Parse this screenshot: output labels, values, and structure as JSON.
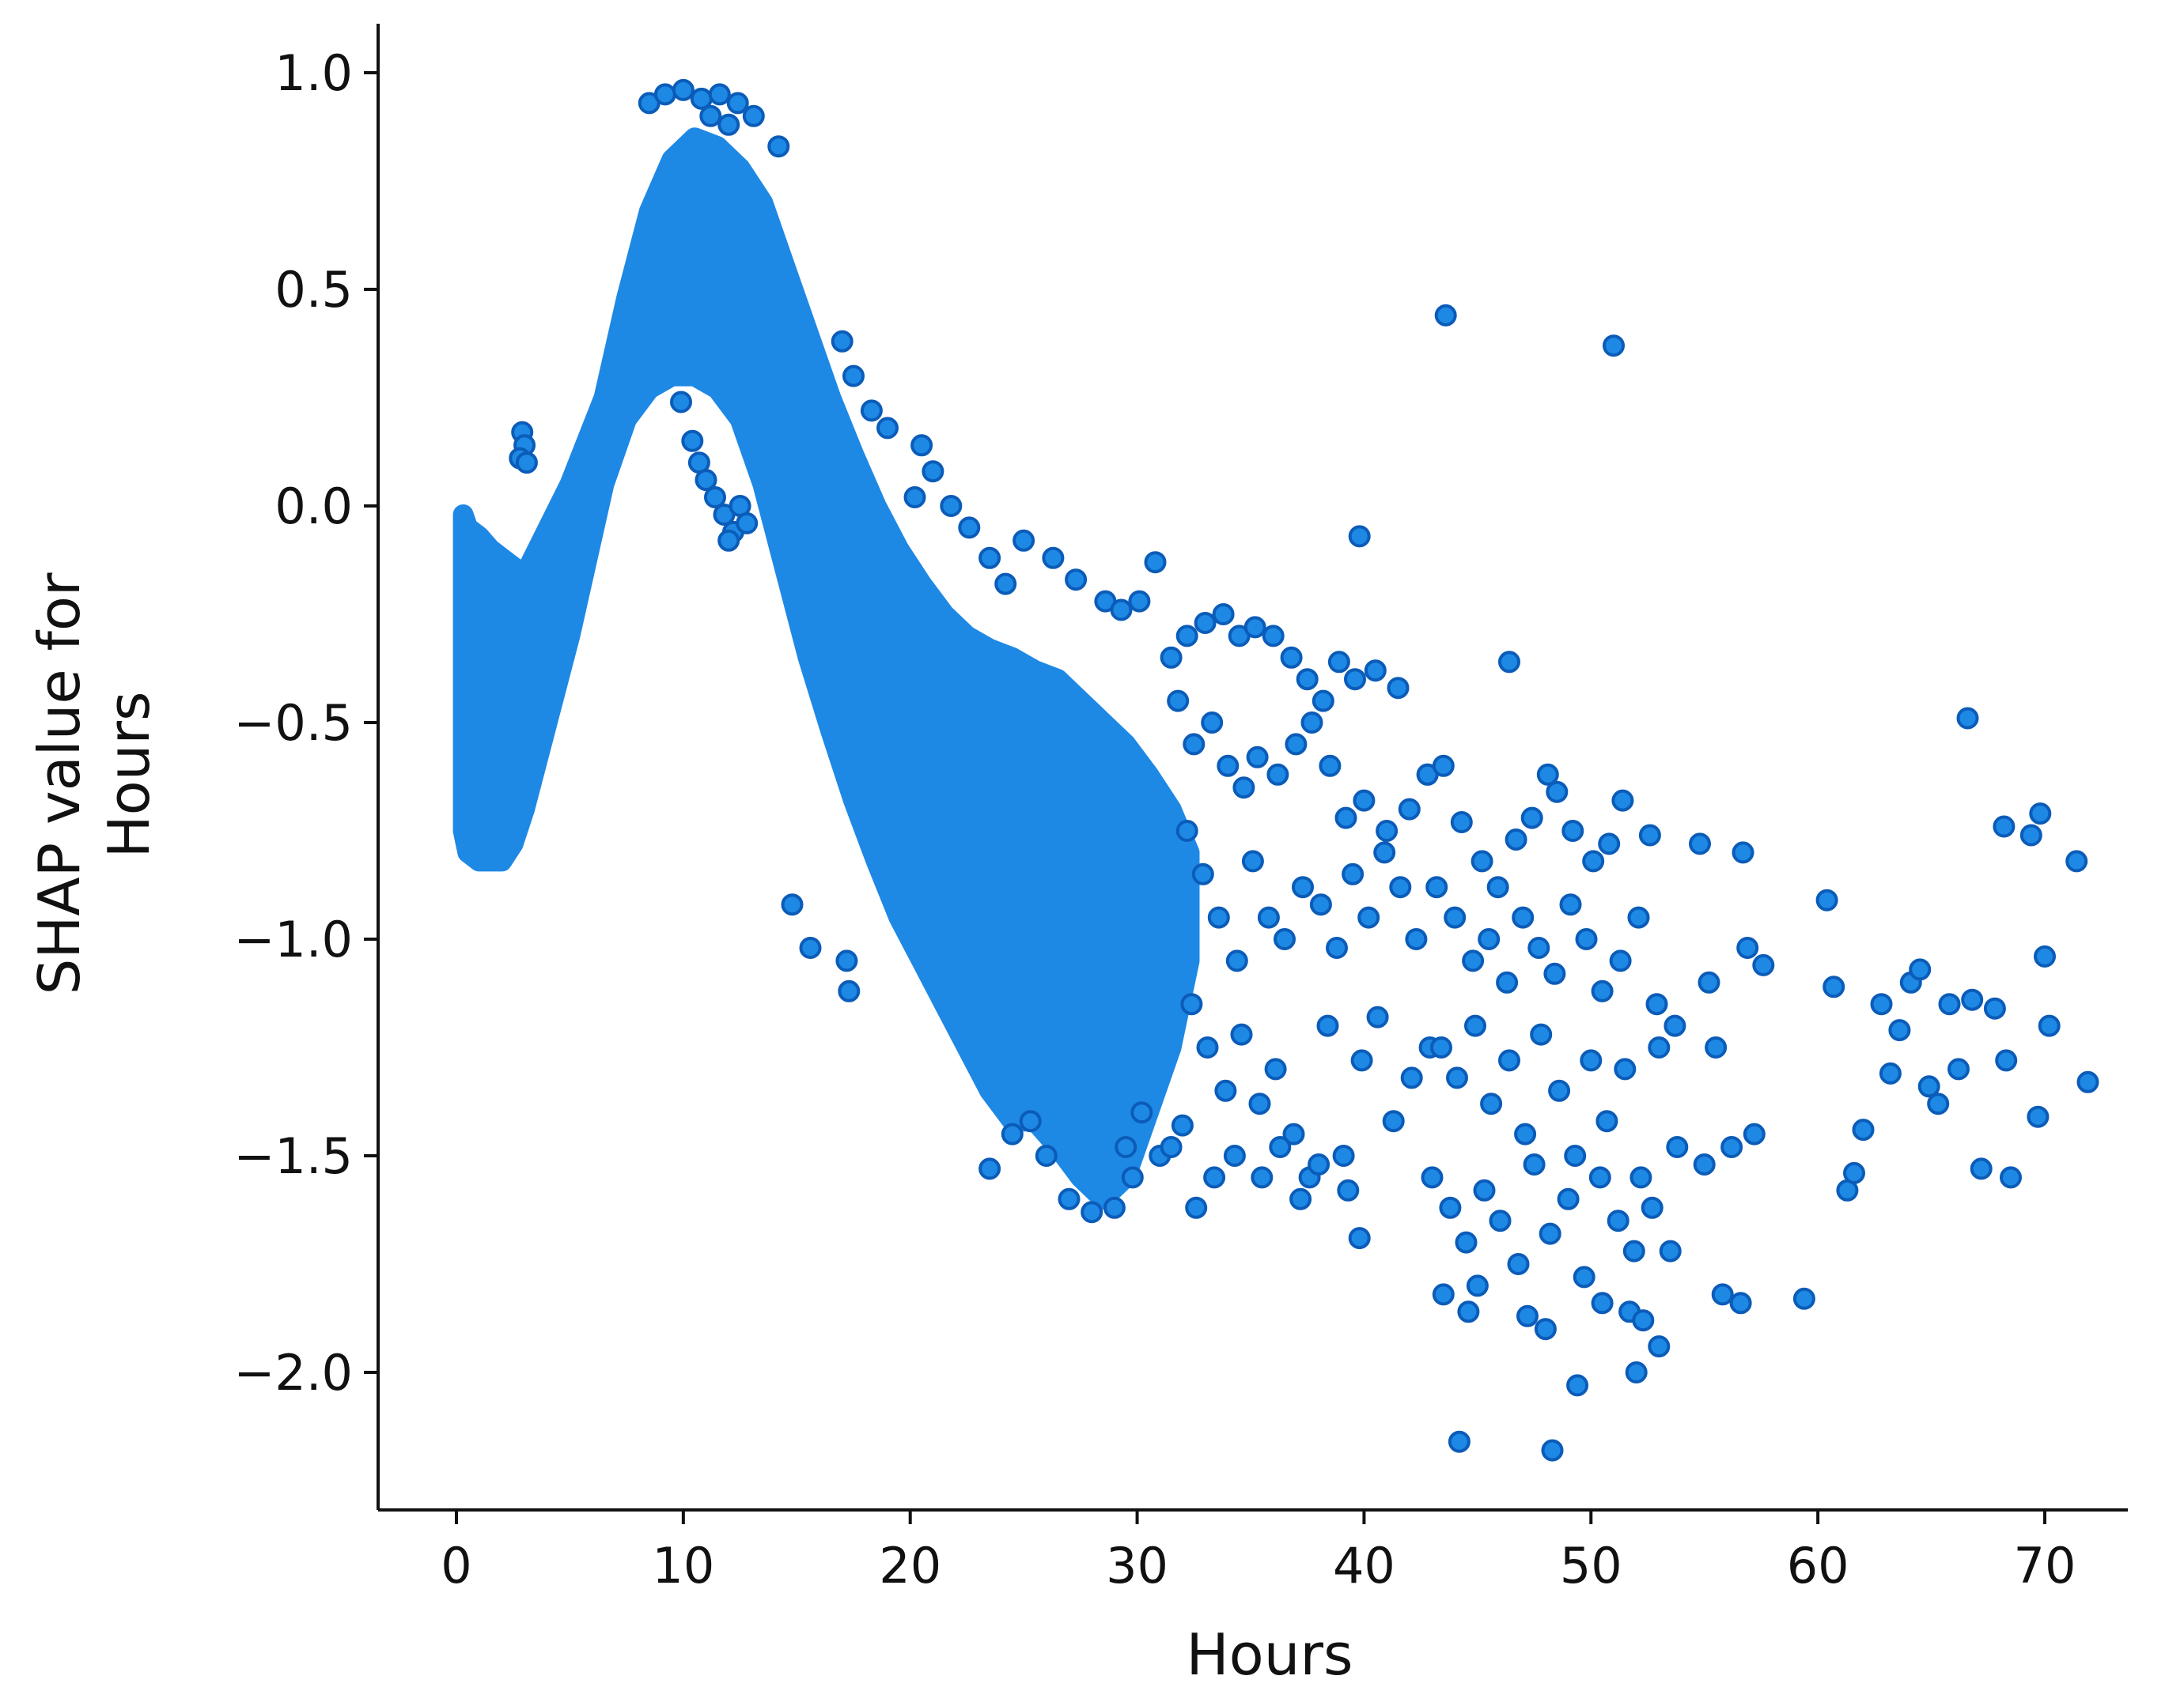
{
  "chart_data": {
    "type": "scatter",
    "title": "",
    "xlabel": "Hours",
    "ylabel_lines": [
      "SHAP value for",
      "Hours"
    ],
    "xlim": [
      -3.5,
      74.5
    ],
    "ylim": [
      -2.35,
      1.12
    ],
    "x_ticks": [
      0,
      10,
      20,
      30,
      40,
      50,
      60,
      70
    ],
    "x_tick_labels": [
      "0",
      "10",
      "20",
      "30",
      "40",
      "50",
      "60",
      "70"
    ],
    "y_ticks": [
      1.0,
      0.5,
      0.0,
      -0.5,
      -1.0,
      -1.5,
      -2.0
    ],
    "y_tick_labels": [
      "1.0",
      "0.5",
      "0.0",
      "−0.5",
      "−1.0",
      "−1.5",
      "−2.0"
    ],
    "grid": false,
    "point_color": "#1e88e5",
    "point_edge_color": "#0b5cb8",
    "dense_bands": [
      {
        "name": "band-low-hours",
        "x": [
          0.3,
          0.5,
          1.0,
          1.5,
          2.0,
          2.5,
          3.0
        ],
        "y_low": [
          -0.75,
          -0.8,
          -0.82,
          -0.82,
          -0.82,
          -0.78,
          -0.7
        ],
        "y_high": [
          -0.02,
          -0.05,
          -0.07,
          -0.1,
          -0.12,
          -0.14,
          -0.16
        ]
      },
      {
        "name": "band-main",
        "x": [
          3.0,
          5.0,
          6.5,
          7.5,
          8.5,
          9.5,
          10.5,
          11.5,
          12.5,
          13.5,
          14.5,
          15.5,
          16.5,
          17.5,
          18.5,
          19.5,
          20.5,
          21.5,
          22.5,
          23.5,
          24.5,
          25.5,
          26.5,
          27.5,
          28.5,
          29.5,
          30.5,
          31.5,
          32.3
        ],
        "y_low": [
          -0.7,
          -0.3,
          0.05,
          0.2,
          0.27,
          0.3,
          0.3,
          0.27,
          0.2,
          0.05,
          -0.15,
          -0.35,
          -0.52,
          -0.68,
          -0.82,
          -0.95,
          -1.05,
          -1.15,
          -1.25,
          -1.35,
          -1.42,
          -1.42,
          -1.48,
          -1.55,
          -1.6,
          -1.55,
          -1.4,
          -1.25,
          -1.05
        ],
        "y_high": [
          -0.16,
          0.05,
          0.25,
          0.48,
          0.68,
          0.8,
          0.85,
          0.83,
          0.78,
          0.7,
          0.55,
          0.4,
          0.25,
          0.12,
          0.0,
          -0.1,
          -0.18,
          -0.25,
          -0.3,
          -0.33,
          -0.35,
          -0.38,
          -0.4,
          -0.45,
          -0.5,
          -0.55,
          -0.62,
          -0.7,
          -0.8
        ]
      }
    ],
    "points": [
      [
        2.9,
        0.17
      ],
      [
        3.0,
        0.14
      ],
      [
        2.8,
        0.11
      ],
      [
        3.1,
        0.1
      ],
      [
        9.9,
        0.24
      ],
      [
        10.4,
        0.15
      ],
      [
        10.7,
        0.1
      ],
      [
        11.0,
        0.06
      ],
      [
        11.4,
        0.02
      ],
      [
        11.8,
        -0.02
      ],
      [
        12.2,
        -0.06
      ],
      [
        12.5,
        0.0
      ],
      [
        12.8,
        -0.04
      ],
      [
        12.0,
        -0.08
      ],
      [
        14.8,
        -0.92
      ],
      [
        15.6,
        -1.02
      ],
      [
        17.2,
        -1.05
      ],
      [
        17.3,
        -1.12
      ],
      [
        8.5,
        0.93
      ],
      [
        9.2,
        0.95
      ],
      [
        10.0,
        0.96
      ],
      [
        10.8,
        0.94
      ],
      [
        11.6,
        0.95
      ],
      [
        12.4,
        0.93
      ],
      [
        13.1,
        0.9
      ],
      [
        14.2,
        0.83
      ],
      [
        11.2,
        0.9
      ],
      [
        12.0,
        0.88
      ],
      [
        17.0,
        0.38
      ],
      [
        17.5,
        0.3
      ],
      [
        18.3,
        0.22
      ],
      [
        19.0,
        0.18
      ],
      [
        20.5,
        0.14
      ],
      [
        21.0,
        0.08
      ],
      [
        20.2,
        0.02
      ],
      [
        21.8,
        0.0
      ],
      [
        22.6,
        -0.05
      ],
      [
        23.5,
        -0.12
      ],
      [
        24.2,
        -0.18
      ],
      [
        25.0,
        -0.08
      ],
      [
        26.3,
        -0.12
      ],
      [
        27.3,
        -0.17
      ],
      [
        28.6,
        -0.22
      ],
      [
        29.3,
        -0.24
      ],
      [
        30.1,
        -0.22
      ],
      [
        30.8,
        -0.13
      ],
      [
        23.5,
        -1.53
      ],
      [
        24.5,
        -1.45
      ],
      [
        25.3,
        -1.42
      ],
      [
        26.0,
        -1.5
      ],
      [
        27.0,
        -1.6
      ],
      [
        28.0,
        -1.63
      ],
      [
        29.0,
        -1.62
      ],
      [
        29.5,
        -1.48
      ],
      [
        30.2,
        -1.4
      ],
      [
        29.8,
        -1.55
      ],
      [
        31.0,
        -1.5
      ],
      [
        31.5,
        -1.48
      ],
      [
        32.0,
        -1.43
      ],
      [
        31.5,
        -0.35
      ],
      [
        32.2,
        -0.3
      ],
      [
        33.0,
        -0.27
      ],
      [
        33.8,
        -0.25
      ],
      [
        34.5,
        -0.3
      ],
      [
        35.2,
        -0.28
      ],
      [
        36.0,
        -0.3
      ],
      [
        36.8,
        -0.35
      ],
      [
        37.5,
        -0.4
      ],
      [
        38.2,
        -0.45
      ],
      [
        38.9,
        -0.36
      ],
      [
        39.6,
        -0.4
      ],
      [
        40.5,
        -0.38
      ],
      [
        41.5,
        -0.42
      ],
      [
        31.8,
        -0.45
      ],
      [
        32.5,
        -0.55
      ],
      [
        33.3,
        -0.5
      ],
      [
        34.0,
        -0.6
      ],
      [
        34.7,
        -0.65
      ],
      [
        35.3,
        -0.58
      ],
      [
        36.2,
        -0.62
      ],
      [
        37.0,
        -0.55
      ],
      [
        37.7,
        -0.5
      ],
      [
        38.5,
        -0.6
      ],
      [
        39.2,
        -0.72
      ],
      [
        40.0,
        -0.68
      ],
      [
        41.0,
        -0.75
      ],
      [
        42.0,
        -0.7
      ],
      [
        42.8,
        -0.62
      ],
      [
        32.2,
        -0.75
      ],
      [
        32.9,
        -0.85
      ],
      [
        33.6,
        -0.95
      ],
      [
        34.4,
        -1.05
      ],
      [
        35.1,
        -0.82
      ],
      [
        35.8,
        -0.95
      ],
      [
        36.5,
        -1.0
      ],
      [
        37.3,
        -0.88
      ],
      [
        38.1,
        -0.92
      ],
      [
        38.8,
        -1.02
      ],
      [
        39.5,
        -0.85
      ],
      [
        40.2,
        -0.95
      ],
      [
        40.9,
        -0.8
      ],
      [
        41.6,
        -0.88
      ],
      [
        42.3,
        -1.0
      ],
      [
        32.4,
        -1.15
      ],
      [
        33.1,
        -1.25
      ],
      [
        33.9,
        -1.35
      ],
      [
        34.6,
        -1.22
      ],
      [
        35.4,
        -1.38
      ],
      [
        36.1,
        -1.3
      ],
      [
        36.9,
        -1.45
      ],
      [
        37.6,
        -1.55
      ],
      [
        38.4,
        -1.2
      ],
      [
        39.1,
        -1.5
      ],
      [
        39.9,
        -1.28
      ],
      [
        40.6,
        -1.18
      ],
      [
        41.3,
        -1.42
      ],
      [
        42.1,
        -1.32
      ],
      [
        42.9,
        -1.25
      ],
      [
        32.6,
        -1.62
      ],
      [
        33.4,
        -1.55
      ],
      [
        34.3,
        -1.5
      ],
      [
        35.5,
        -1.55
      ],
      [
        36.3,
        -1.48
      ],
      [
        37.2,
        -1.6
      ],
      [
        38.0,
        -1.52
      ],
      [
        39.3,
        -1.58
      ],
      [
        39.8,
        -1.69
      ],
      [
        43.6,
        0.44
      ],
      [
        51.0,
        0.37
      ],
      [
        39.8,
        -0.07
      ],
      [
        46.4,
        -0.36
      ],
      [
        42.8,
        -0.62
      ],
      [
        43.5,
        -0.6
      ],
      [
        44.3,
        -0.73
      ],
      [
        45.2,
        -0.82
      ],
      [
        45.9,
        -0.88
      ],
      [
        46.7,
        -0.77
      ],
      [
        47.4,
        -0.72
      ],
      [
        48.1,
        -0.62
      ],
      [
        48.5,
        -0.66
      ],
      [
        49.2,
        -0.75
      ],
      [
        50.1,
        -0.82
      ],
      [
        50.8,
        -0.78
      ],
      [
        51.4,
        -0.68
      ],
      [
        52.6,
        -0.76
      ],
      [
        54.8,
        -0.78
      ],
      [
        56.7,
        -0.8
      ],
      [
        43.2,
        -0.88
      ],
      [
        44.0,
        -0.95
      ],
      [
        44.8,
        -1.05
      ],
      [
        45.5,
        -1.0
      ],
      [
        46.3,
        -1.1
      ],
      [
        47.0,
        -0.95
      ],
      [
        47.7,
        -1.02
      ],
      [
        48.4,
        -1.08
      ],
      [
        49.1,
        -0.92
      ],
      [
        49.8,
        -1.0
      ],
      [
        50.5,
        -1.12
      ],
      [
        51.3,
        -1.05
      ],
      [
        52.1,
        -0.95
      ],
      [
        52.9,
        -1.15
      ],
      [
        53.7,
        -1.2
      ],
      [
        43.4,
        -1.25
      ],
      [
        44.1,
        -1.32
      ],
      [
        44.9,
        -1.2
      ],
      [
        45.6,
        -1.38
      ],
      [
        46.4,
        -1.28
      ],
      [
        47.1,
        -1.45
      ],
      [
        47.8,
        -1.22
      ],
      [
        48.6,
        -1.35
      ],
      [
        49.3,
        -1.5
      ],
      [
        50.0,
        -1.28
      ],
      [
        50.7,
        -1.42
      ],
      [
        51.5,
        -1.3
      ],
      [
        52.2,
        -1.55
      ],
      [
        53.0,
        -1.25
      ],
      [
        53.8,
        -1.48
      ],
      [
        43.0,
        -1.55
      ],
      [
        43.8,
        -1.62
      ],
      [
        44.5,
        -1.7
      ],
      [
        45.3,
        -1.58
      ],
      [
        46.0,
        -1.65
      ],
      [
        46.8,
        -1.75
      ],
      [
        47.5,
        -1.52
      ],
      [
        48.2,
        -1.68
      ],
      [
        49.0,
        -1.6
      ],
      [
        49.7,
        -1.78
      ],
      [
        50.4,
        -1.55
      ],
      [
        51.2,
        -1.65
      ],
      [
        51.9,
        -1.72
      ],
      [
        52.7,
        -1.62
      ],
      [
        53.5,
        -1.72
      ],
      [
        43.5,
        -1.82
      ],
      [
        44.6,
        -1.86
      ],
      [
        45.0,
        -1.8
      ],
      [
        47.2,
        -1.87
      ],
      [
        48.0,
        -1.9
      ],
      [
        50.5,
        -1.84
      ],
      [
        51.7,
        -1.86
      ],
      [
        52.3,
        -1.88
      ],
      [
        53.0,
        -1.94
      ],
      [
        44.2,
        -2.16
      ],
      [
        48.3,
        -2.18
      ],
      [
        49.4,
        -2.03
      ],
      [
        52.0,
        -2.0
      ],
      [
        55.2,
        -1.1
      ],
      [
        55.5,
        -1.25
      ],
      [
        55.0,
        -1.52
      ],
      [
        55.8,
        -1.82
      ],
      [
        56.2,
        -1.48
      ],
      [
        56.9,
        -1.02
      ],
      [
        57.2,
        -1.45
      ],
      [
        57.6,
        -1.06
      ],
      [
        56.6,
        -1.84
      ],
      [
        59.4,
        -1.83
      ],
      [
        60.4,
        -0.91
      ],
      [
        60.7,
        -1.11
      ],
      [
        61.3,
        -1.58
      ],
      [
        61.6,
        -1.54
      ],
      [
        62.0,
        -1.44
      ],
      [
        62.8,
        -1.15
      ],
      [
        63.2,
        -1.31
      ],
      [
        63.6,
        -1.21
      ],
      [
        64.1,
        -1.1
      ],
      [
        64.5,
        -1.07
      ],
      [
        64.9,
        -1.34
      ],
      [
        65.3,
        -1.38
      ],
      [
        65.8,
        -1.15
      ],
      [
        66.2,
        -1.3
      ],
      [
        66.6,
        -0.49
      ],
      [
        66.8,
        -1.14
      ],
      [
        67.2,
        -1.53
      ],
      [
        67.8,
        -1.16
      ],
      [
        68.2,
        -0.74
      ],
      [
        68.5,
        -1.55
      ],
      [
        68.3,
        -1.28
      ],
      [
        69.4,
        -0.76
      ],
      [
        69.8,
        -0.71
      ],
      [
        69.7,
        -1.41
      ],
      [
        70.0,
        -1.04
      ],
      [
        70.2,
        -1.2
      ],
      [
        71.4,
        -0.82
      ],
      [
        71.9,
        -1.33
      ]
    ]
  }
}
